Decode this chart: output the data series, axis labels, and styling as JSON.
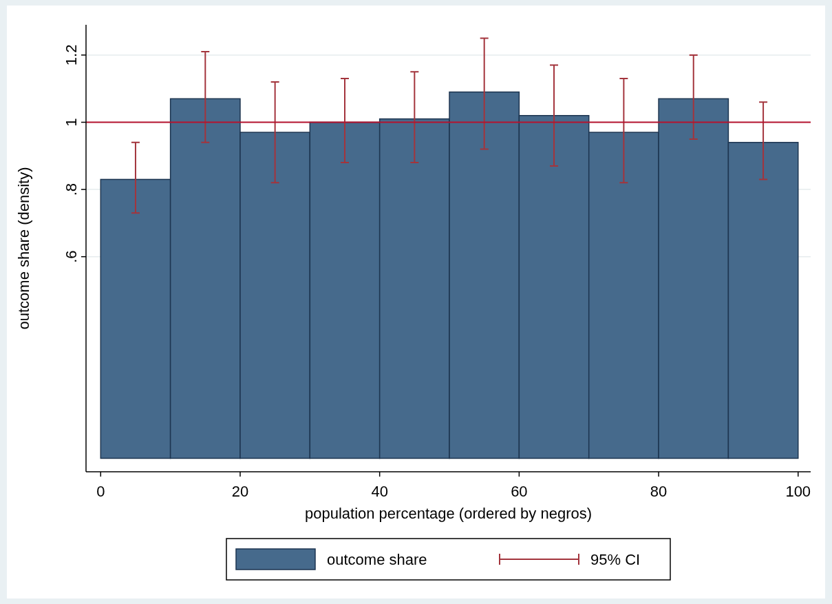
{
  "chart_data": {
    "type": "histogram",
    "xlabel": "population percentage (ordered by negros)",
    "ylabel": "outcome share (density)",
    "bins": [
      0,
      10,
      20,
      30,
      40,
      50,
      60,
      70,
      80,
      90,
      100
    ],
    "series": [
      {
        "name": "outcome share",
        "color": "#466a8c",
        "values": [
          0.83,
          1.07,
          0.97,
          1.0,
          1.01,
          1.09,
          1.02,
          0.97,
          1.07,
          0.94
        ],
        "errors": [
          [
            0.73,
            0.94
          ],
          [
            0.94,
            1.21
          ],
          [
            0.82,
            1.12
          ],
          [
            0.88,
            1.13
          ],
          [
            0.88,
            1.15
          ],
          [
            0.92,
            1.25
          ],
          [
            0.87,
            1.17
          ],
          [
            0.82,
            1.13
          ],
          [
            0.95,
            1.2
          ],
          [
            0.83,
            1.06
          ]
        ]
      }
    ],
    "annotations": [
      "95% CI"
    ],
    "xlim": [
      -2.1,
      101.8
    ],
    "ylim": [
      -0.04,
      1.29
    ],
    "xticks": [
      0,
      20,
      40,
      60,
      80,
      100
    ],
    "yticks": [
      {
        "value": 0.6,
        "label": ".6"
      },
      {
        "value": 0.8,
        "label": ".8"
      },
      {
        "value": 1,
        "label": "1"
      },
      {
        "value": 1.2,
        "label": "1.2"
      }
    ],
    "ref_lines": [
      {
        "axis": "y",
        "value": 1,
        "color": "#b5122e"
      }
    ],
    "grid": "y",
    "legend": "bottom"
  }
}
